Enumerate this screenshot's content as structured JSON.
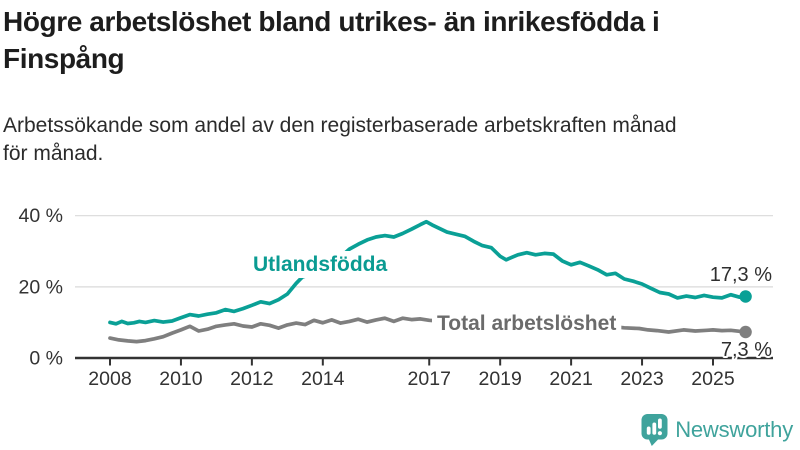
{
  "header": {
    "title_lines": [
      "Högre arbetslöshet bland utrikes- än inrikesfödda i",
      "Finspång"
    ],
    "subtitle_lines": [
      "Arbetssökande som andel av den registerbaserade arbetskraften månad",
      "för månad."
    ]
  },
  "chart_data": {
    "type": "line",
    "title": "Högre arbetslöshet bland utrikes- än inrikesfödda i Finspång",
    "subtitle": "Arbetssökande som andel av den registerbaserade arbetskraften månad för månad.",
    "unit": "%",
    "grid": true,
    "legend_position": "inline-labels",
    "x_axis": {
      "ticks": [
        2008,
        2010,
        2012,
        2014,
        2017,
        2019,
        2021,
        2023,
        2025
      ],
      "tick_labels": [
        "2008",
        "2010",
        "2012",
        "2014",
        "2017",
        "2019",
        "2021",
        "2023",
        "2025"
      ],
      "range": [
        2007.0,
        2026.6
      ]
    },
    "y_axis": {
      "ticks": [
        0,
        20,
        40
      ],
      "tick_labels": [
        "0 %",
        "20 %",
        "40 %"
      ],
      "range": [
        0,
        44
      ]
    },
    "series": [
      {
        "name": "Utlandsfödda",
        "color": "#0aa096",
        "label_color": "#0a9b92",
        "end_label": "17,3 %",
        "end_value": 17.3,
        "points": [
          [
            2008.0,
            10.0
          ],
          [
            2008.17,
            9.6
          ],
          [
            2008.33,
            10.3
          ],
          [
            2008.5,
            9.7
          ],
          [
            2008.67,
            9.9
          ],
          [
            2008.83,
            10.3
          ],
          [
            2009.0,
            10.0
          ],
          [
            2009.25,
            10.5
          ],
          [
            2009.5,
            10.1
          ],
          [
            2009.75,
            10.4
          ],
          [
            2010.0,
            11.3
          ],
          [
            2010.25,
            12.2
          ],
          [
            2010.5,
            11.8
          ],
          [
            2010.75,
            12.3
          ],
          [
            2011.0,
            12.7
          ],
          [
            2011.25,
            13.6
          ],
          [
            2011.5,
            13.1
          ],
          [
            2011.75,
            13.9
          ],
          [
            2012.0,
            14.8
          ],
          [
            2012.25,
            15.8
          ],
          [
            2012.5,
            15.3
          ],
          [
            2012.75,
            16.4
          ],
          [
            2013.0,
            18.0
          ],
          [
            2013.25,
            21.0
          ],
          [
            2013.42,
            22.7
          ],
          [
            2013.58,
            23.3
          ],
          [
            2013.75,
            23.8
          ],
          [
            2014.0,
            24.3
          ],
          [
            2014.25,
            26.3
          ],
          [
            2014.5,
            28.4
          ],
          [
            2014.75,
            30.6
          ],
          [
            2015.0,
            32.0
          ],
          [
            2015.25,
            33.2
          ],
          [
            2015.5,
            34.0
          ],
          [
            2015.75,
            34.4
          ],
          [
            2016.0,
            34.0
          ],
          [
            2016.25,
            35.0
          ],
          [
            2016.5,
            36.2
          ],
          [
            2016.75,
            37.5
          ],
          [
            2016.92,
            38.3
          ],
          [
            2017.08,
            37.4
          ],
          [
            2017.25,
            36.6
          ],
          [
            2017.5,
            35.4
          ],
          [
            2017.75,
            34.8
          ],
          [
            2018.0,
            34.2
          ],
          [
            2018.25,
            32.8
          ],
          [
            2018.5,
            31.6
          ],
          [
            2018.75,
            31.0
          ],
          [
            2019.0,
            28.6
          ],
          [
            2019.17,
            27.6
          ],
          [
            2019.33,
            28.3
          ],
          [
            2019.5,
            29.0
          ],
          [
            2019.75,
            29.6
          ],
          [
            2020.0,
            29.0
          ],
          [
            2020.25,
            29.4
          ],
          [
            2020.5,
            29.2
          ],
          [
            2020.75,
            27.3
          ],
          [
            2021.0,
            26.2
          ],
          [
            2021.25,
            26.9
          ],
          [
            2021.5,
            25.9
          ],
          [
            2021.75,
            24.8
          ],
          [
            2022.0,
            23.4
          ],
          [
            2022.25,
            23.8
          ],
          [
            2022.5,
            22.2
          ],
          [
            2022.75,
            21.6
          ],
          [
            2023.0,
            20.8
          ],
          [
            2023.25,
            19.6
          ],
          [
            2023.5,
            18.4
          ],
          [
            2023.75,
            18.0
          ],
          [
            2024.0,
            16.9
          ],
          [
            2024.25,
            17.4
          ],
          [
            2024.5,
            17.0
          ],
          [
            2024.75,
            17.6
          ],
          [
            2025.0,
            17.1
          ],
          [
            2025.25,
            16.9
          ],
          [
            2025.5,
            17.8
          ],
          [
            2025.75,
            17.1
          ],
          [
            2025.92,
            17.3
          ]
        ]
      },
      {
        "name": "Total arbetslöshet",
        "color": "#7f7f7f",
        "label_color": "#6b6b6b",
        "end_label": "7,3 %",
        "end_value": 7.3,
        "points": [
          [
            2008.0,
            5.6
          ],
          [
            2008.25,
            5.1
          ],
          [
            2008.5,
            4.8
          ],
          [
            2008.75,
            4.6
          ],
          [
            2009.0,
            4.9
          ],
          [
            2009.25,
            5.4
          ],
          [
            2009.5,
            6.0
          ],
          [
            2009.75,
            7.0
          ],
          [
            2010.0,
            7.9
          ],
          [
            2010.25,
            8.9
          ],
          [
            2010.5,
            7.6
          ],
          [
            2010.75,
            8.1
          ],
          [
            2011.0,
            8.9
          ],
          [
            2011.25,
            9.3
          ],
          [
            2011.5,
            9.6
          ],
          [
            2011.75,
            9.0
          ],
          [
            2012.0,
            8.7
          ],
          [
            2012.25,
            9.6
          ],
          [
            2012.5,
            9.2
          ],
          [
            2012.75,
            8.4
          ],
          [
            2013.0,
            9.3
          ],
          [
            2013.25,
            9.8
          ],
          [
            2013.5,
            9.4
          ],
          [
            2013.75,
            10.6
          ],
          [
            2014.0,
            9.9
          ],
          [
            2014.25,
            10.7
          ],
          [
            2014.5,
            9.8
          ],
          [
            2014.75,
            10.3
          ],
          [
            2015.0,
            10.9
          ],
          [
            2015.25,
            10.1
          ],
          [
            2015.5,
            10.7
          ],
          [
            2015.75,
            11.2
          ],
          [
            2016.0,
            10.3
          ],
          [
            2016.25,
            11.2
          ],
          [
            2016.5,
            10.8
          ],
          [
            2016.75,
            11.0
          ],
          [
            2017.0,
            10.6
          ],
          [
            2017.5,
            10.2
          ],
          [
            2018.0,
            9.9
          ],
          [
            2018.5,
            9.7
          ],
          [
            2019.0,
            9.8
          ],
          [
            2019.5,
            9.9
          ],
          [
            2020.0,
            10.2
          ],
          [
            2020.33,
            11.0
          ],
          [
            2020.67,
            10.8
          ],
          [
            2021.0,
            10.4
          ],
          [
            2021.5,
            9.7
          ],
          [
            2022.0,
            9.0
          ],
          [
            2022.5,
            8.5
          ],
          [
            2022.92,
            8.3
          ],
          [
            2023.17,
            7.9
          ],
          [
            2023.42,
            7.7
          ],
          [
            2023.75,
            7.3
          ],
          [
            2024.17,
            7.9
          ],
          [
            2024.5,
            7.6
          ],
          [
            2024.83,
            7.8
          ],
          [
            2025.0,
            7.9
          ],
          [
            2025.25,
            7.7
          ],
          [
            2025.5,
            7.8
          ],
          [
            2025.75,
            7.5
          ],
          [
            2025.92,
            7.3
          ]
        ]
      }
    ],
    "colors": {
      "grid": "#dadada",
      "axis": "#333333",
      "tick_text": "#333333",
      "end_label_text": "#2e2e2e",
      "background": "#ffffff"
    }
  },
  "footer": {
    "brand": "Newsworthy",
    "logo_color": "#3fa39c"
  }
}
